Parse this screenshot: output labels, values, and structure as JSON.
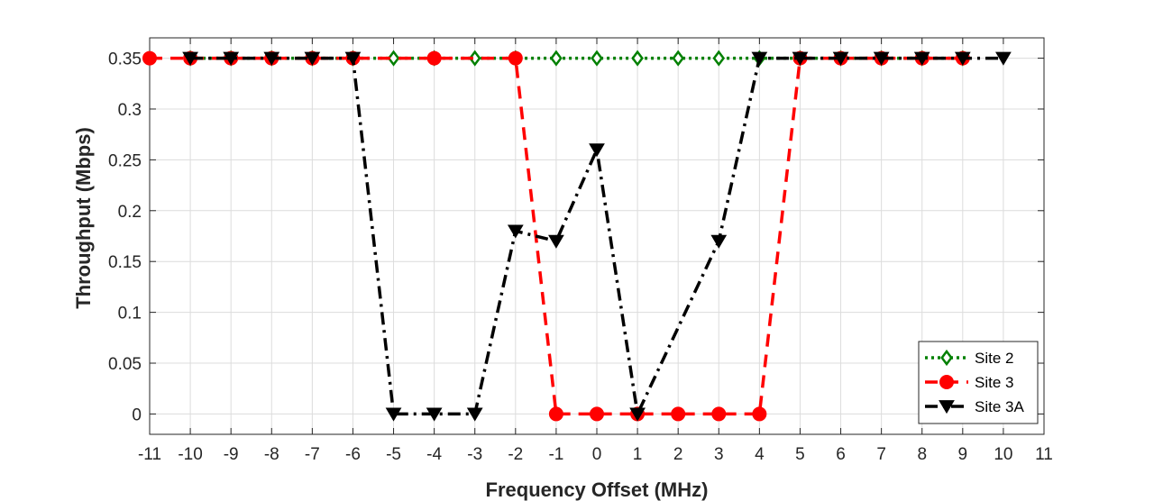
{
  "chart_data": {
    "type": "line",
    "xlabel": "Frequency Offset (MHz)",
    "ylabel": "Throughput (Mbps)",
    "xlim": [
      -11,
      11
    ],
    "ylim": [
      -0.02,
      0.37
    ],
    "xticks": [
      -11,
      -10,
      -9,
      -8,
      -7,
      -6,
      -5,
      -4,
      -3,
      -2,
      -1,
      0,
      1,
      2,
      3,
      4,
      5,
      6,
      7,
      8,
      9,
      10,
      11
    ],
    "yticks": [
      0,
      0.05,
      0.1,
      0.15,
      0.2,
      0.25,
      0.3,
      0.35
    ],
    "ytick_labels": [
      "0",
      "0.05",
      "0.1",
      "0.15",
      "0.2",
      "0.25",
      "0.3",
      "0.35"
    ],
    "grid": true,
    "legend_position": "bottom-right",
    "series": [
      {
        "name": "Site 2",
        "color": "#008000",
        "line_style": "dotted",
        "marker": "diamond-open",
        "x": [
          -10,
          -9,
          -8,
          -7,
          -6,
          -5,
          -4,
          -3,
          -2,
          -1,
          0,
          1,
          2,
          3,
          4,
          5,
          6,
          7,
          8,
          9
        ],
        "y": [
          0.35,
          0.35,
          0.35,
          0.35,
          0.35,
          0.35,
          0.35,
          0.35,
          0.35,
          0.35,
          0.35,
          0.35,
          0.35,
          0.35,
          0.35,
          0.35,
          0.35,
          0.35,
          0.35,
          0.35
        ]
      },
      {
        "name": "Site 3",
        "color": "#ff0000",
        "line_style": "dashed",
        "marker": "circle-filled",
        "x": [
          -11,
          -10,
          -9,
          -8,
          -7,
          -6,
          -4,
          -2,
          -1,
          0,
          1,
          2,
          3,
          4,
          5,
          6,
          7,
          8,
          9
        ],
        "y": [
          0.35,
          0.35,
          0.35,
          0.35,
          0.35,
          0.35,
          0.35,
          0.35,
          0,
          0,
          0,
          0,
          0,
          0,
          0.35,
          0.35,
          0.35,
          0.35,
          0.35
        ]
      },
      {
        "name": "Site 3A",
        "color": "#000000",
        "line_style": "dashdot",
        "marker": "triangle-down-filled",
        "x": [
          -10,
          -9,
          -8,
          -7,
          -6,
          -5,
          -4,
          -3,
          -2,
          -1,
          0,
          1,
          3,
          4,
          5,
          6,
          7,
          8,
          9,
          10
        ],
        "y": [
          0.35,
          0.35,
          0.35,
          0.35,
          0.35,
          0,
          0,
          0,
          0.18,
          0.17,
          0.26,
          0,
          0.17,
          0.35,
          0.35,
          0.35,
          0.35,
          0.35,
          0.35,
          0.35
        ]
      }
    ]
  }
}
